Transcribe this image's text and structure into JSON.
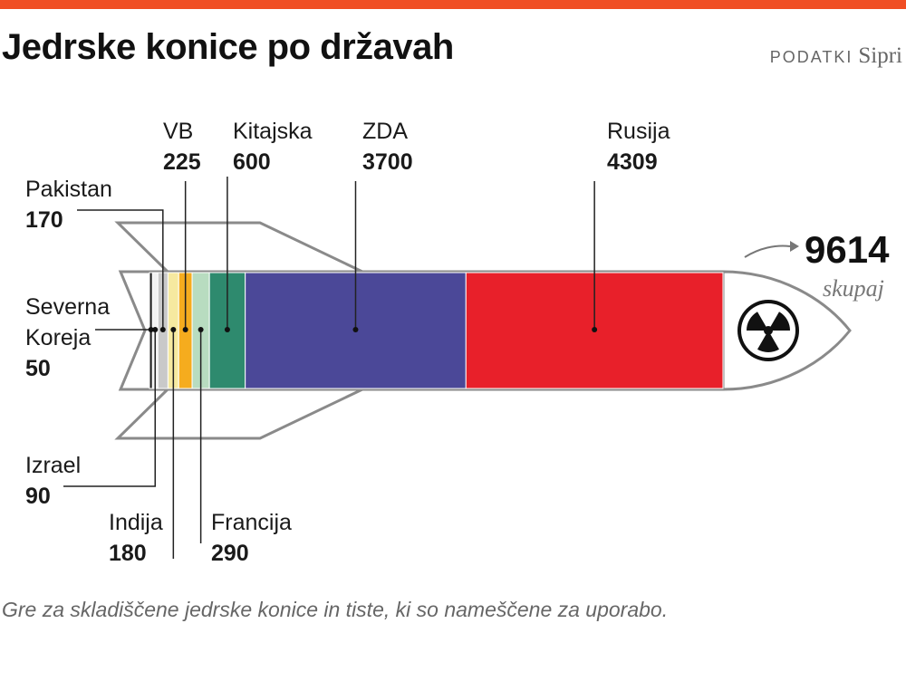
{
  "chart_data": {
    "type": "bar",
    "stacked": true,
    "title": "Jedrske konice po državah",
    "source_label": "PODATKI",
    "source": "Sipri",
    "note": "Gre za skladiščene jedrske konice in tiste, ki so nameščene za uporabo.",
    "total": 9614,
    "total_label": "skupaj",
    "categories": [
      "Severna Koreja",
      "Izrael",
      "Pakistan",
      "Indija",
      "VB",
      "Francija",
      "Kitajska",
      "ZDA",
      "Rusija"
    ],
    "values": [
      50,
      90,
      170,
      180,
      225,
      290,
      600,
      3700,
      4309
    ],
    "colors": [
      "#222222",
      "#f2f2f2",
      "#c9c9c9",
      "#f6e9a0",
      "#f5ac1e",
      "#b8dcc0",
      "#2e8a6e",
      "#4b4898",
      "#e8202a"
    ]
  }
}
